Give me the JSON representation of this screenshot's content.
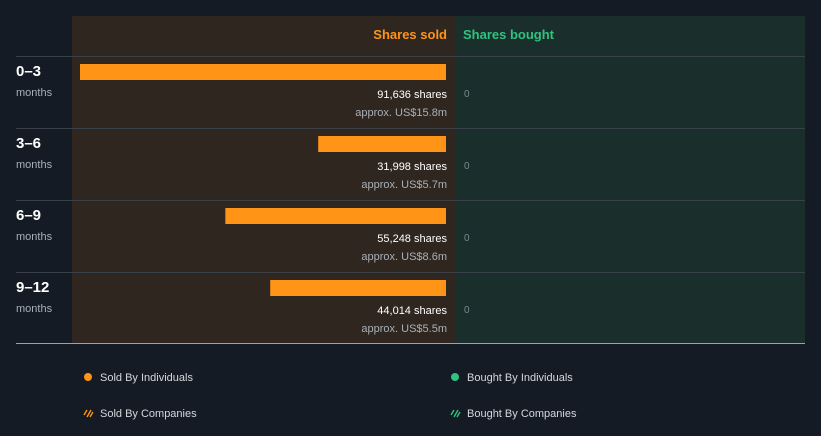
{
  "chart_data": {
    "type": "bar",
    "orientation": "horizontal",
    "header": {
      "sold": "Shares sold",
      "bought": "Shares bought"
    },
    "categories": [
      {
        "label": "0–3",
        "unit": "months"
      },
      {
        "label": "3–6",
        "unit": "months"
      },
      {
        "label": "6–9",
        "unit": "months"
      },
      {
        "label": "9–12",
        "unit": "months"
      }
    ],
    "series": [
      {
        "name": "Sold By Individuals",
        "color": "#ff9417",
        "values": [
          91636,
          31998,
          55248,
          44014
        ],
        "value_labels": [
          "91,636 shares",
          "31,998 shares",
          "55,248 shares",
          "44,014 shares"
        ],
        "approx_labels": [
          "approx. US$15.8m",
          "approx. US$5.7m",
          "approx. US$8.6m",
          "approx. US$5.5m"
        ]
      },
      {
        "name": "Bought By Individuals",
        "color": "#2ec37f",
        "values": [
          0,
          0,
          0,
          0
        ],
        "value_labels": [
          "0",
          "0",
          "0",
          "0"
        ]
      }
    ],
    "xlim": [
      0,
      91636
    ],
    "legend": {
      "placement": "bottom",
      "items": [
        {
          "label": "Sold By Individuals",
          "color": "#ff9417",
          "style": "dot"
        },
        {
          "label": "Bought By Individuals",
          "color": "#2ec37f",
          "style": "dot"
        },
        {
          "label": "Sold By Companies",
          "color": "#ff9417",
          "style": "hatch"
        },
        {
          "label": "Bought By Companies",
          "color": "#2ec37f",
          "style": "hatch"
        }
      ]
    }
  }
}
